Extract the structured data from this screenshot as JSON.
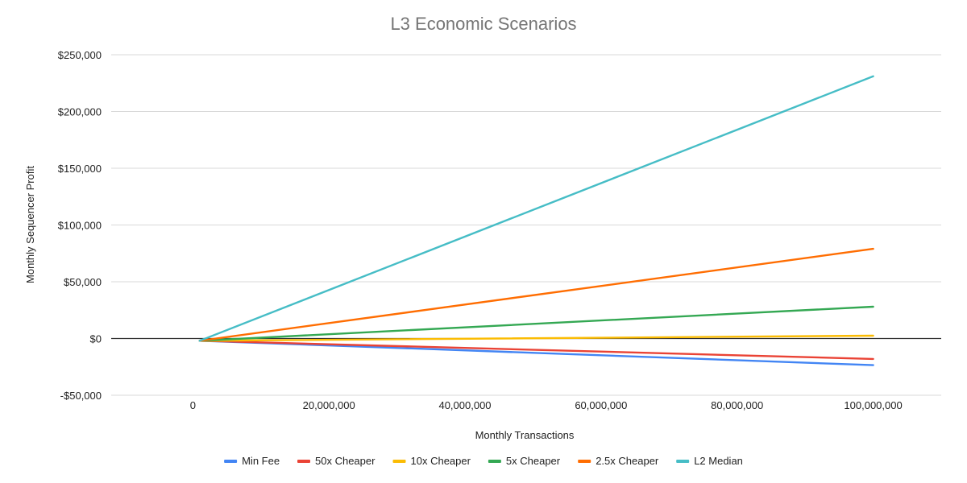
{
  "chart_data": {
    "type": "line",
    "title": "L3 Economic Scenarios",
    "xlabel": "Monthly Transactions",
    "ylabel": "Monthly Sequencer Profit",
    "xlim": [
      -12000000,
      110000000
    ],
    "ylim": [
      -50000,
      250000
    ],
    "x_ticks": [
      0,
      20000000,
      40000000,
      60000000,
      80000000,
      100000000
    ],
    "x_tick_labels": [
      "0",
      "20,000,000",
      "40,000,000",
      "60,000,000",
      "80,000,000",
      "100,000,000"
    ],
    "y_ticks": [
      -50000,
      0,
      50000,
      100000,
      150000,
      200000,
      250000
    ],
    "y_tick_labels": [
      "-$50,000",
      "$0",
      "$50,000",
      "$100,000",
      "$150,000",
      "$200,000",
      "$250,000"
    ],
    "grid": true,
    "legend_position": "bottom",
    "x": [
      1000000,
      100000000
    ],
    "series": [
      {
        "name": "Min Fee",
        "color": "#4285F4",
        "values": [
          -2000,
          -23500
        ]
      },
      {
        "name": "50x Cheaper",
        "color": "#EA4335",
        "values": [
          -2000,
          -18000
        ]
      },
      {
        "name": "10x Cheaper",
        "color": "#FBBC04",
        "values": [
          -2000,
          2500
        ]
      },
      {
        "name": "5x Cheaper",
        "color": "#34A853",
        "values": [
          -2000,
          28000
        ]
      },
      {
        "name": "2.5x Cheaper",
        "color": "#FF6D01",
        "values": [
          -2000,
          79000
        ]
      },
      {
        "name": "L2 Median",
        "color": "#46BDC6",
        "values": [
          -2000,
          231000
        ]
      }
    ]
  }
}
